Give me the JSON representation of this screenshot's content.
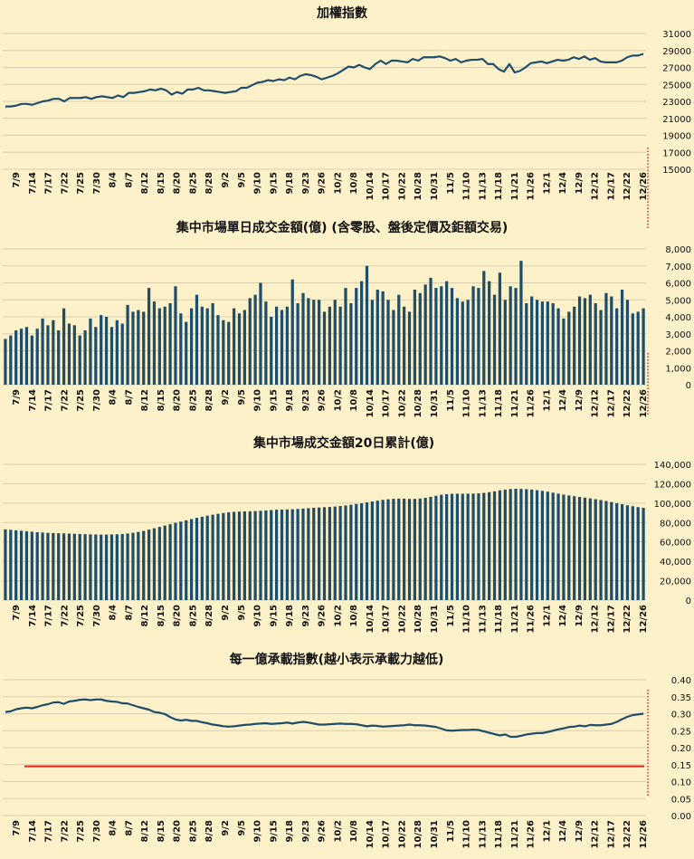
{
  "colors": {
    "background": "#fdf1c9",
    "series": "#1f4e6b",
    "reference_line": "#e8231e",
    "grid": "#d9cfb0"
  },
  "chart_data": [
    {
      "type": "line",
      "title": "加權指數",
      "ylim": [
        15000,
        31000
      ],
      "yticks": [
        31000,
        29000,
        27000,
        25000,
        23000,
        21000,
        19000,
        17000,
        15000
      ],
      "ytick_labels": [
        "31000",
        "29000",
        "27000",
        "25000",
        "23000",
        "21000",
        "19000",
        "17000",
        "15000"
      ],
      "x_tick_labels": [
        "7/9",
        "7/14",
        "7/17",
        "7/22",
        "7/25",
        "7/30",
        "8/4",
        "8/7",
        "8/12",
        "8/15",
        "8/20",
        "8/25",
        "8/28",
        "9/2",
        "9/5",
        "9/10",
        "9/15",
        "9/18",
        "9/23",
        "9/26",
        "10/2",
        "10/8",
        "10/14",
        "10/17",
        "10/22",
        "10/28",
        "10/31",
        "11/5",
        "11/10",
        "11/13",
        "11/18",
        "11/21",
        "11/26",
        "12/1",
        "12/4",
        "12/9",
        "12/12",
        "12/17",
        "12/22",
        "12/26"
      ],
      "series": [
        {
          "name": "加權指數",
          "values": [
            22400,
            22400,
            22500,
            22700,
            22700,
            22600,
            22800,
            23000,
            23100,
            23300,
            23300,
            23000,
            23400,
            23400,
            23400,
            23500,
            23300,
            23500,
            23600,
            23500,
            23400,
            23700,
            23500,
            24000,
            24000,
            24100,
            24200,
            24400,
            24300,
            24500,
            24300,
            23800,
            24100,
            23900,
            24400,
            24400,
            24600,
            24300,
            24300,
            24200,
            24100,
            24000,
            24100,
            24200,
            24600,
            24600,
            24900,
            25200,
            25300,
            25500,
            25400,
            25600,
            25500,
            25800,
            25600,
            26000,
            26200,
            26100,
            25900,
            25600,
            25800,
            26000,
            26300,
            26700,
            27100,
            27000,
            27300,
            27000,
            26800,
            27400,
            27800,
            27400,
            27800,
            27800,
            27700,
            27600,
            28000,
            27800,
            28200,
            28200,
            28200,
            28300,
            28100,
            27800,
            28000,
            27600,
            27800,
            27900,
            27900,
            28000,
            27400,
            27400,
            26800,
            26500,
            27400,
            26400,
            26600,
            27000,
            27500,
            27600,
            27700,
            27500,
            27700,
            27900,
            27800,
            27900,
            28200,
            28000,
            28300,
            27900,
            28100,
            27700,
            27600,
            27600,
            27600,
            27800,
            28200,
            28400,
            28400,
            28600
          ]
        }
      ]
    },
    {
      "type": "bar",
      "title": "集中市場單日成交金額(億) (含零股、盤後定價及鉅額交易)",
      "ylim": [
        0,
        8000
      ],
      "yticks": [
        8000,
        7000,
        6000,
        5000,
        4000,
        3000,
        2000,
        1000,
        0
      ],
      "ytick_labels": [
        "8,000",
        "7,000",
        "6,000",
        "5,000",
        "4,000",
        "3,000",
        "2,000",
        "1,000",
        "0"
      ],
      "x_tick_labels": [
        "7/9",
        "7/14",
        "7/17",
        "7/22",
        "7/25",
        "7/30",
        "8/4",
        "8/7",
        "8/12",
        "8/15",
        "8/20",
        "8/25",
        "8/28",
        "9/2",
        "9/5",
        "9/10",
        "9/15",
        "9/18",
        "9/23",
        "9/26",
        "10/2",
        "10/8",
        "10/14",
        "10/17",
        "10/22",
        "10/28",
        "10/31",
        "11/5",
        "11/10",
        "11/13",
        "11/18",
        "11/21",
        "11/26",
        "12/1",
        "12/4",
        "12/9",
        "12/12",
        "12/17",
        "12/22",
        "12/26"
      ],
      "series": [
        {
          "name": "成交金額",
          "values": [
            2700,
            2900,
            3200,
            3300,
            3400,
            2900,
            3300,
            3900,
            3500,
            3800,
            3200,
            4500,
            3600,
            3500,
            2900,
            3200,
            3900,
            3400,
            4100,
            4000,
            3400,
            3800,
            3600,
            4700,
            4300,
            4400,
            4300,
            5700,
            4900,
            4500,
            4600,
            4800,
            5800,
            4200,
            3700,
            4500,
            5300,
            4600,
            4500,
            4800,
            4100,
            3800,
            3700,
            4500,
            4200,
            4400,
            5100,
            5300,
            6000,
            4900,
            4000,
            4600,
            4400,
            4600,
            6200,
            4800,
            5400,
            5100,
            5000,
            5000,
            4300,
            4600,
            5000,
            4600,
            5700,
            4800,
            5700,
            6100,
            7000,
            5000,
            5600,
            5500,
            5000,
            4400,
            5300,
            4600,
            4300,
            5600,
            5400,
            5900,
            6300,
            5700,
            5800,
            6100,
            5700,
            5100,
            4900,
            5000,
            5800,
            5700,
            6700,
            6100,
            5300,
            6600,
            5000,
            5800,
            5700,
            7300,
            4800,
            5200,
            5000,
            4900,
            4900,
            4800,
            4500,
            3900,
            4300,
            4600,
            5200,
            5100,
            5300,
            4800,
            4400,
            5400,
            5200,
            4500,
            5600,
            5000,
            4200,
            4300,
            4500
          ]
        }
      ]
    },
    {
      "type": "bar",
      "title": "集中市場成交金額20日累計(億)",
      "ylim": [
        0,
        140000
      ],
      "yticks": [
        140000,
        120000,
        100000,
        80000,
        60000,
        40000,
        20000,
        0
      ],
      "ytick_labels": [
        "140,000",
        "120,000",
        "100,000",
        "80,000",
        "60,000",
        "40,000",
        "20,000",
        "0"
      ],
      "x_tick_labels": [
        "7/9",
        "7/14",
        "7/17",
        "7/22",
        "7/25",
        "7/30",
        "8/4",
        "8/7",
        "8/12",
        "8/15",
        "8/20",
        "8/25",
        "8/28",
        "9/2",
        "9/5",
        "9/10",
        "9/15",
        "9/18",
        "9/23",
        "9/26",
        "10/2",
        "10/8",
        "10/14",
        "10/17",
        "10/22",
        "10/28",
        "10/31",
        "11/5",
        "11/10",
        "11/13",
        "11/18",
        "11/21",
        "11/26",
        "12/1",
        "12/4",
        "12/9",
        "12/12",
        "12/17",
        "12/22",
        "12/26"
      ],
      "series": [
        {
          "name": "20日累計",
          "values": [
            73000,
            72500,
            72000,
            71500,
            71000,
            70500,
            70000,
            69700,
            69400,
            69200,
            69000,
            68800,
            68600,
            68400,
            68200,
            68000,
            67800,
            67700,
            67600,
            67600,
            67700,
            67900,
            68200,
            68700,
            69400,
            70300,
            71400,
            72700,
            74100,
            75500,
            76900,
            78300,
            79700,
            81000,
            82300,
            83600,
            84800,
            86000,
            87100,
            88100,
            89000,
            89800,
            90500,
            91000,
            91300,
            91500,
            91600,
            91800,
            92100,
            92500,
            92900,
            93200,
            93400,
            93500,
            93700,
            94000,
            94400,
            94800,
            95200,
            95500,
            95800,
            96100,
            96500,
            97000,
            97600,
            98300,
            99100,
            99900,
            100800,
            101700,
            102600,
            103400,
            104000,
            104500,
            104700,
            104600,
            104400,
            104400,
            104800,
            105500,
            106500,
            107600,
            108600,
            109300,
            109600,
            109700,
            109700,
            109700,
            109800,
            110100,
            110600,
            111300,
            112200,
            113200,
            114000,
            114600,
            114800,
            114700,
            114400,
            114000,
            113400,
            112700,
            111800,
            110800,
            109800,
            108800,
            107900,
            107100,
            106400,
            105700,
            104900,
            104100,
            103200,
            102200,
            101100,
            100000,
            98900,
            97800,
            96800,
            95900,
            95200
          ]
        }
      ]
    },
    {
      "type": "line",
      "title": "每一億承載指數(越小表示承載力越低)",
      "ylim": [
        0,
        0.4
      ],
      "yticks": [
        0.4,
        0.35,
        0.3,
        0.25,
        0.2,
        0.15,
        0.1,
        0.05,
        0
      ],
      "ytick_labels": [
        "0.40",
        "0.35",
        "0.30",
        "0.25",
        "0.20",
        "0.15",
        "0.10",
        "0.05",
        "0.00"
      ],
      "reference_value": 0.145,
      "x_tick_labels": [
        "7/9",
        "7/14",
        "7/17",
        "7/22",
        "7/25",
        "7/30",
        "8/4",
        "8/7",
        "8/12",
        "8/15",
        "8/20",
        "8/25",
        "8/28",
        "9/2",
        "9/5",
        "9/10",
        "9/15",
        "9/18",
        "9/23",
        "9/26",
        "10/2",
        "10/8",
        "10/14",
        "10/17",
        "10/22",
        "10/28",
        "10/31",
        "11/5",
        "11/10",
        "11/13",
        "11/18",
        "11/21",
        "11/26",
        "12/1",
        "12/4",
        "12/9",
        "12/12",
        "12/17",
        "12/22",
        "12/26"
      ],
      "series": [
        {
          "name": "承載指數",
          "values": [
            0.305,
            0.307,
            0.313,
            0.316,
            0.318,
            0.316,
            0.32,
            0.325,
            0.328,
            0.333,
            0.334,
            0.329,
            0.336,
            0.338,
            0.341,
            0.342,
            0.34,
            0.342,
            0.342,
            0.338,
            0.336,
            0.335,
            0.331,
            0.33,
            0.325,
            0.32,
            0.316,
            0.312,
            0.305,
            0.303,
            0.299,
            0.29,
            0.283,
            0.28,
            0.282,
            0.279,
            0.279,
            0.275,
            0.272,
            0.268,
            0.266,
            0.263,
            0.262,
            0.263,
            0.265,
            0.267,
            0.268,
            0.27,
            0.271,
            0.272,
            0.27,
            0.271,
            0.272,
            0.274,
            0.271,
            0.274,
            0.276,
            0.274,
            0.271,
            0.268,
            0.268,
            0.269,
            0.27,
            0.271,
            0.27,
            0.27,
            0.269,
            0.266,
            0.263,
            0.265,
            0.264,
            0.262,
            0.263,
            0.264,
            0.265,
            0.266,
            0.268,
            0.266,
            0.266,
            0.265,
            0.263,
            0.261,
            0.256,
            0.251,
            0.25,
            0.251,
            0.252,
            0.252,
            0.253,
            0.252,
            0.248,
            0.244,
            0.24,
            0.236,
            0.239,
            0.232,
            0.232,
            0.235,
            0.239,
            0.241,
            0.243,
            0.243,
            0.246,
            0.25,
            0.254,
            0.257,
            0.261,
            0.262,
            0.265,
            0.263,
            0.267,
            0.266,
            0.266,
            0.268,
            0.27,
            0.276,
            0.284,
            0.291,
            0.296,
            0.298,
            0.3
          ]
        }
      ]
    }
  ]
}
